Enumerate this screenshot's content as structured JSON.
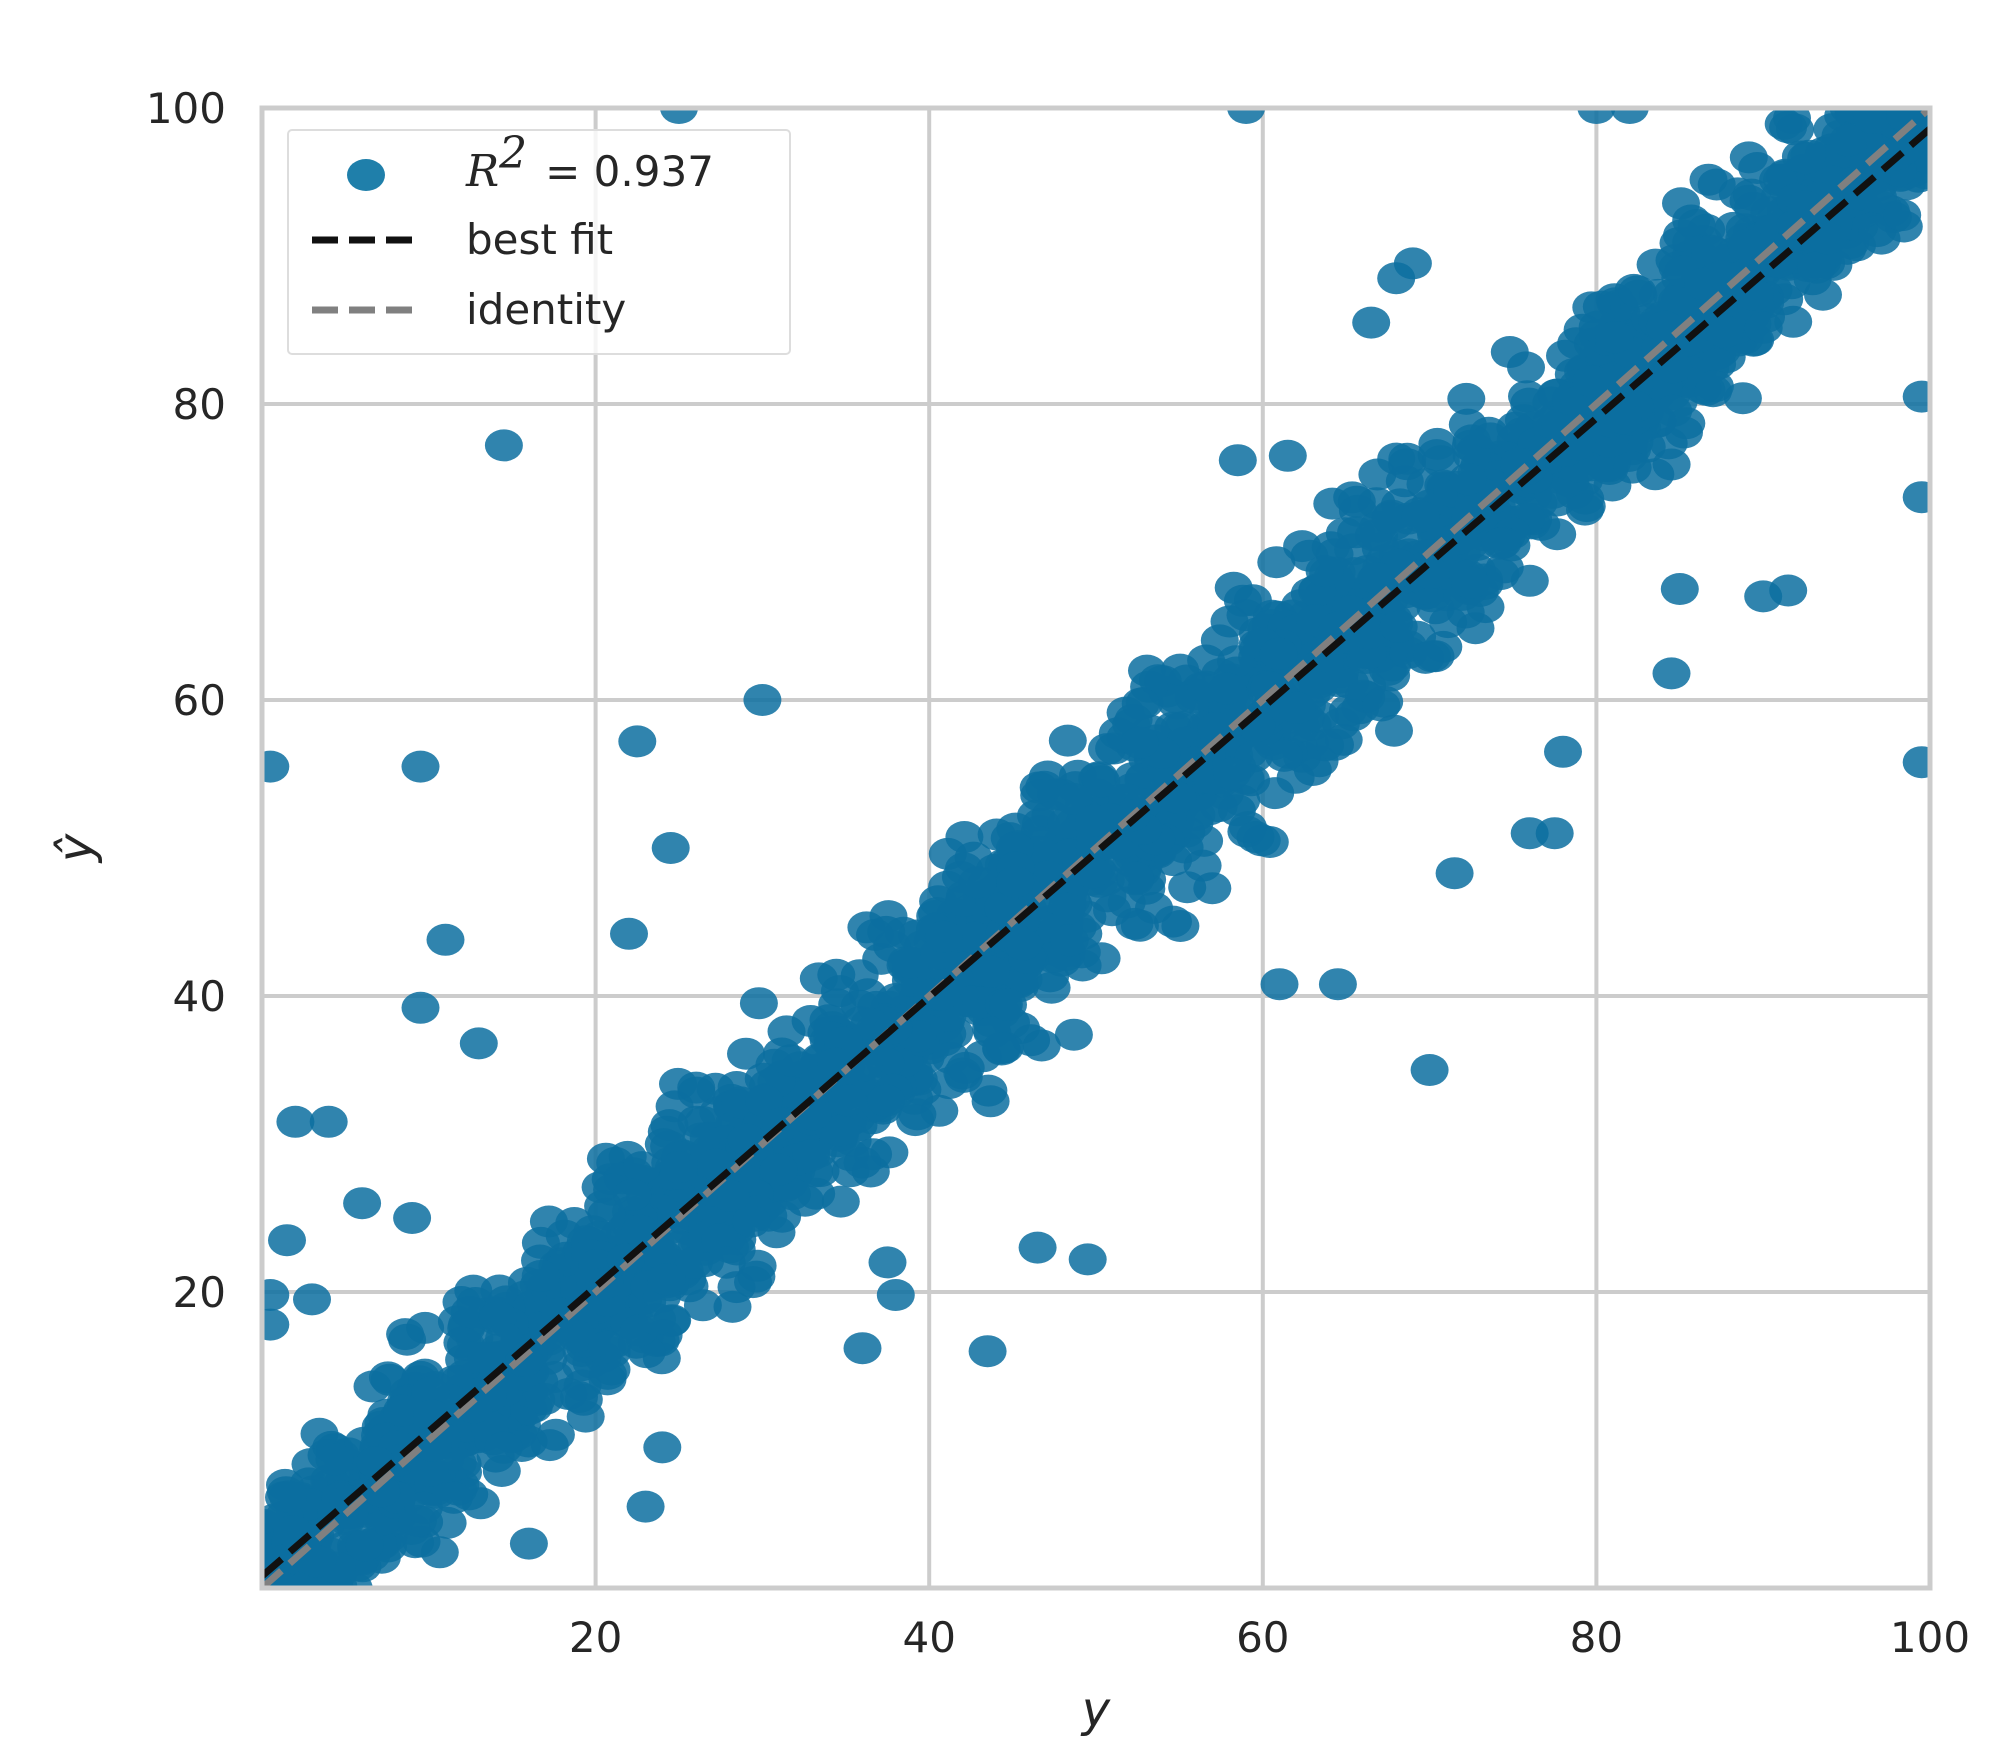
{
  "chart_data": {
    "type": "scatter",
    "title": "",
    "xlabel": "y",
    "ylabel": "ŷ",
    "xlim": [
      0,
      100
    ],
    "ylim": [
      0,
      100
    ],
    "x_ticks": [
      "20",
      "40",
      "60",
      "80",
      "100"
    ],
    "y_ticks": [
      "20",
      "40",
      "60",
      "80",
      "100"
    ],
    "grid": true,
    "legend_position": "top-left",
    "legend": {
      "r2_symbol": "R",
      "r2_exponent": "2",
      "r2_text": "= 0.937",
      "best_fit": "best fit",
      "identity": "identity"
    },
    "r_squared": 0.937,
    "series": [
      {
        "kind": "points",
        "color": "#0c6fa0",
        "approx_count": 2500,
        "relation": "points concentrated around y_hat = x, tighter spread near the ends",
        "outliers": [
          [
            0.5,
            55.5
          ],
          [
            0.5,
            19.8
          ],
          [
            0.5,
            17.8
          ],
          [
            1.5,
            23.5
          ],
          [
            2,
            31.5
          ],
          [
            4,
            31.5
          ],
          [
            3,
            19.5
          ],
          [
            6,
            26
          ],
          [
            9,
            25
          ],
          [
            9.5,
            55.5
          ],
          [
            9.5,
            39.2
          ],
          [
            11,
            43.8
          ],
          [
            13,
            36.8
          ],
          [
            14.5,
            77.2
          ],
          [
            22,
            44.2
          ],
          [
            22.5,
            57.2
          ],
          [
            24.5,
            50
          ],
          [
            25,
            100
          ],
          [
            23,
            5.5
          ],
          [
            24,
            9.5
          ],
          [
            16,
            3
          ],
          [
            30,
            60
          ],
          [
            59,
            100
          ],
          [
            58.5,
            76.2
          ],
          [
            61.5,
            76.5
          ],
          [
            68,
            88.5
          ],
          [
            69,
            89.5
          ],
          [
            66.5,
            85.5
          ],
          [
            70,
            35
          ],
          [
            71.5,
            48.3
          ],
          [
            78,
            56.5
          ],
          [
            76,
            51
          ],
          [
            77.5,
            51
          ],
          [
            84.5,
            61.8
          ],
          [
            85,
            67.5
          ],
          [
            90,
            67
          ],
          [
            91.5,
            67.4
          ],
          [
            80,
            100
          ],
          [
            82,
            100
          ],
          [
            98.5,
            99.5
          ],
          [
            99.5,
            73.7
          ],
          [
            99.5,
            55.8
          ],
          [
            99.5,
            80.5
          ],
          [
            61,
            40.8
          ],
          [
            64.5,
            40.8
          ],
          [
            46.5,
            23
          ],
          [
            49.5,
            22.2
          ],
          [
            43.5,
            16
          ],
          [
            36,
            16.2
          ],
          [
            38,
            19.8
          ],
          [
            37.5,
            22
          ]
        ]
      },
      {
        "kind": "line",
        "name": "best fit",
        "color": "#111111",
        "dash": true,
        "from": [
          0,
          0.8
        ],
        "to": [
          100,
          98.6
        ]
      },
      {
        "kind": "line",
        "name": "identity",
        "color": "#808080",
        "dash": true,
        "from": [
          0,
          0
        ],
        "to": [
          100,
          100
        ]
      }
    ]
  }
}
